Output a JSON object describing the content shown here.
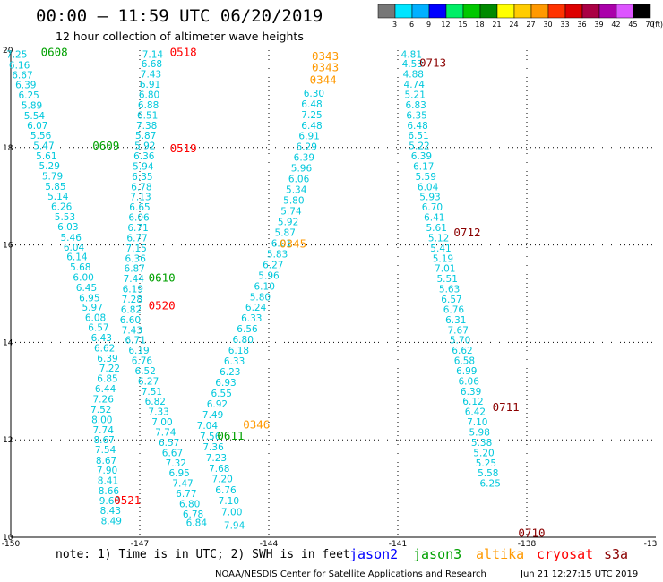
{
  "header": {
    "title": "00:00 – 11:59 UTC 06/20/2019",
    "subtitle": "12 hour collection of altimeter wave heights"
  },
  "footer": {
    "note": "note: 1) Time is in UTC; 2) SWH is in feet",
    "credit": "NOAA/NESDIS Center for Satellite Applications and Research",
    "timestamp": "Jun 21 12:27:15 UTC 2019"
  },
  "missions": [
    {
      "name": "jason2",
      "color": "#0000ff"
    },
    {
      "name": "jason3",
      "color": "#00a000"
    },
    {
      "name": "altika",
      "color": "#ff9900"
    },
    {
      "name": "cryosat",
      "color": "#ff0000"
    },
    {
      "name": "s3a",
      "color": "#8b0000"
    }
  ],
  "color_scale": {
    "unit": "(ft)",
    "labels": [
      "3",
      "6",
      "9",
      "12",
      "15",
      "18",
      "21",
      "24",
      "27",
      "30",
      "33",
      "36",
      "39",
      "42",
      "45",
      "70"
    ],
    "colors": [
      "#777777",
      "#00e5ff",
      "#00b0ff",
      "#0000ff",
      "#00ee66",
      "#00c800",
      "#008a00",
      "#ffff00",
      "#ffcc00",
      "#ff9900",
      "#ff3300",
      "#dd0000",
      "#aa0044",
      "#aa00aa",
      "#dd55ff",
      "#000000"
    ]
  },
  "chart_data": {
    "type": "scatter",
    "xlim": [
      -150,
      -135
    ],
    "ylim": [
      10,
      20
    ],
    "x_ticks": [
      "-150",
      "-147",
      "-144",
      "-141",
      "-138",
      "-13"
    ],
    "y_ticks": [
      "20",
      "18",
      "16",
      "14",
      "12",
      "10"
    ],
    "grid": true,
    "value_color": "#00c8dc",
    "cycle_labels": [
      {
        "text": "0608",
        "color": "#00a000",
        "lon": -149.3,
        "lat": 19.95
      },
      {
        "text": "0609",
        "color": "#00a000",
        "lon": -148.1,
        "lat": 18.03
      },
      {
        "text": "0610",
        "color": "#00a000",
        "lon": -146.8,
        "lat": 15.32
      },
      {
        "text": "0611",
        "color": "#00a000",
        "lon": -145.2,
        "lat": 12.08
      },
      {
        "text": "0518",
        "color": "#ff0000",
        "lon": -146.3,
        "lat": 19.95
      },
      {
        "text": "0519",
        "color": "#ff0000",
        "lon": -146.3,
        "lat": 17.98
      },
      {
        "text": "0520",
        "color": "#ff0000",
        "lon": -146.8,
        "lat": 14.75
      },
      {
        "text": "0521",
        "color": "#ff0000",
        "lon": -147.6,
        "lat": 10.75
      },
      {
        "text": "0343",
        "color": "#ff9900",
        "lon": -143.0,
        "lat": 19.87
      },
      {
        "text": "0343",
        "color": "#ff9900",
        "lon": -143.0,
        "lat": 19.64
      },
      {
        "text": "0344",
        "color": "#ff9900",
        "lon": -143.05,
        "lat": 19.38
      },
      {
        "text": "0345",
        "color": "#ff9900",
        "lon": -143.75,
        "lat": 16.02
      },
      {
        "text": "0346",
        "color": "#ff9900",
        "lon": -144.6,
        "lat": 12.31
      },
      {
        "text": "0713",
        "color": "#8b0000",
        "lon": -140.5,
        "lat": 19.73
      },
      {
        "text": "0712",
        "color": "#8b0000",
        "lon": -139.7,
        "lat": 16.25
      },
      {
        "text": "0711",
        "color": "#8b0000",
        "lon": -138.8,
        "lat": 12.67
      },
      {
        "text": "0710",
        "color": "#8b0000",
        "lon": -138.2,
        "lat": 10.08
      }
    ],
    "tracks": [
      {
        "name": "pass-a",
        "points": [
          [
            -149.86,
            19.92,
            "7.25"
          ],
          [
            -149.8,
            19.7,
            "6.16"
          ],
          [
            -149.73,
            19.49,
            "6.67"
          ],
          [
            -149.65,
            19.29,
            "6.39"
          ],
          [
            -149.58,
            19.08,
            "6.25"
          ],
          [
            -149.51,
            18.87,
            "5.89"
          ],
          [
            -149.45,
            18.66,
            "5.54"
          ],
          [
            -149.38,
            18.46,
            "6.07"
          ],
          [
            -149.3,
            18.25,
            "5.56"
          ],
          [
            -149.23,
            18.04,
            "5.47"
          ],
          [
            -149.17,
            17.83,
            "5.61"
          ],
          [
            -149.1,
            17.63,
            "5.29"
          ],
          [
            -149.03,
            17.42,
            "5.79"
          ],
          [
            -148.96,
            17.21,
            "5.85"
          ],
          [
            -148.9,
            17.0,
            "5.14"
          ],
          [
            -148.82,
            16.79,
            "6.26"
          ],
          [
            -148.74,
            16.58,
            "5.53"
          ],
          [
            -148.67,
            16.38,
            "6.03"
          ],
          [
            -148.6,
            16.16,
            "5.46"
          ],
          [
            -148.53,
            15.96,
            "6.04"
          ],
          [
            -148.46,
            15.76,
            "6.14"
          ],
          [
            -148.38,
            15.55,
            "5.68"
          ],
          [
            -148.31,
            15.34,
            "6.00"
          ],
          [
            -148.24,
            15.13,
            "6.45"
          ],
          [
            -148.17,
            14.92,
            "6.95"
          ],
          [
            -148.1,
            14.72,
            "5.97"
          ],
          [
            -148.03,
            14.51,
            "6.08"
          ],
          [
            -147.96,
            14.31,
            "6.57"
          ],
          [
            -147.89,
            14.1,
            "6.43"
          ],
          [
            -147.82,
            13.89,
            "6.62"
          ],
          [
            -147.75,
            13.68,
            "6.39"
          ],
          [
            -147.7,
            13.47,
            "7.22"
          ],
          [
            -147.75,
            13.26,
            "6.85"
          ],
          [
            -147.8,
            13.05,
            "6.44"
          ],
          [
            -147.85,
            12.84,
            "7.26"
          ],
          [
            -147.9,
            12.63,
            "7.52"
          ],
          [
            -147.88,
            12.42,
            "8.00"
          ],
          [
            -147.85,
            12.21,
            "7.74"
          ],
          [
            -147.83,
            12.0,
            "8.67"
          ],
          [
            -147.8,
            11.8,
            "7.54"
          ],
          [
            -147.78,
            11.58,
            "8.67"
          ],
          [
            -147.76,
            11.38,
            "7.90"
          ],
          [
            -147.74,
            11.17,
            "8.41"
          ],
          [
            -147.72,
            10.96,
            "8.66"
          ],
          [
            -147.7,
            10.75,
            "9.60"
          ],
          [
            -147.68,
            10.55,
            "8.43"
          ],
          [
            -147.66,
            10.34,
            "8.49"
          ]
        ]
      },
      {
        "name": "pass-b",
        "points": [
          [
            -146.7,
            19.92,
            "7.14"
          ],
          [
            -146.72,
            19.72,
            "6.68"
          ],
          [
            -146.74,
            19.51,
            "7.43"
          ],
          [
            -146.76,
            19.3,
            "6.91"
          ],
          [
            -146.78,
            19.09,
            "6.80"
          ],
          [
            -146.8,
            18.88,
            "6.88"
          ],
          [
            -146.82,
            18.67,
            "6.51"
          ],
          [
            -146.84,
            18.46,
            "7.38"
          ],
          [
            -146.86,
            18.25,
            "5.87"
          ],
          [
            -146.88,
            18.04,
            "5.92"
          ],
          [
            -146.9,
            17.83,
            "6.36"
          ],
          [
            -146.92,
            17.62,
            "5.94"
          ],
          [
            -146.94,
            17.41,
            "6.35"
          ],
          [
            -146.96,
            17.2,
            "6.78"
          ],
          [
            -146.98,
            16.99,
            "7.13"
          ],
          [
            -147.0,
            16.78,
            "6.65"
          ],
          [
            -147.02,
            16.57,
            "6.06"
          ],
          [
            -147.04,
            16.36,
            "6.71"
          ],
          [
            -147.06,
            16.15,
            "6.77"
          ],
          [
            -147.08,
            15.94,
            "7.15"
          ],
          [
            -147.1,
            15.73,
            "6.36"
          ],
          [
            -147.12,
            15.52,
            "6.87"
          ],
          [
            -147.14,
            15.31,
            "7.44"
          ],
          [
            -147.16,
            15.1,
            "6.19"
          ],
          [
            -147.18,
            14.89,
            "7.28"
          ],
          [
            -147.2,
            14.68,
            "6.82"
          ],
          [
            -147.22,
            14.47,
            "6.60"
          ],
          [
            -147.18,
            14.26,
            "7.43"
          ],
          [
            -147.1,
            14.05,
            "6.71"
          ],
          [
            -147.02,
            13.84,
            "6.19"
          ],
          [
            -146.95,
            13.63,
            "6.76"
          ],
          [
            -146.87,
            13.42,
            "6.52"
          ],
          [
            -146.8,
            13.21,
            "6.27"
          ],
          [
            -146.72,
            13.0,
            "7.51"
          ],
          [
            -146.64,
            12.79,
            "6.82"
          ],
          [
            -146.56,
            12.58,
            "7.33"
          ],
          [
            -146.48,
            12.37,
            "7.00"
          ],
          [
            -146.4,
            12.16,
            "7.74"
          ],
          [
            -146.32,
            11.95,
            "6.57"
          ],
          [
            -146.24,
            11.74,
            "6.67"
          ],
          [
            -146.16,
            11.53,
            "7.32"
          ],
          [
            -146.08,
            11.32,
            "6.95"
          ],
          [
            -146.0,
            11.11,
            "7.47"
          ],
          [
            -145.92,
            10.9,
            "6.77"
          ],
          [
            -145.84,
            10.69,
            "6.80"
          ],
          [
            -145.76,
            10.48,
            "6.78"
          ],
          [
            -145.68,
            10.3,
            "6.84"
          ]
        ]
      },
      {
        "name": "pass-c",
        "points": [
          [
            -144.8,
            10.25,
            "7.94"
          ],
          [
            -144.86,
            10.52,
            "7.00"
          ],
          [
            -144.93,
            10.75,
            "7.10"
          ],
          [
            -145.0,
            10.97,
            "6.76"
          ],
          [
            -145.08,
            11.2,
            "7.20"
          ],
          [
            -145.15,
            11.42,
            "7.68"
          ],
          [
            -145.22,
            11.64,
            "7.23"
          ],
          [
            -145.29,
            11.86,
            "7.36"
          ],
          [
            -145.36,
            12.08,
            "7.56"
          ],
          [
            -145.43,
            12.3,
            "7.04"
          ],
          [
            -145.3,
            12.52,
            "7.49"
          ],
          [
            -145.2,
            12.74,
            "6.92"
          ],
          [
            -145.1,
            12.96,
            "6.55"
          ],
          [
            -145.0,
            13.18,
            "6.93"
          ],
          [
            -144.9,
            13.4,
            "6.23"
          ],
          [
            -144.8,
            13.62,
            "6.33"
          ],
          [
            -144.7,
            13.84,
            "6.18"
          ],
          [
            -144.6,
            14.06,
            "6.80"
          ],
          [
            -144.5,
            14.28,
            "6.56"
          ],
          [
            -144.4,
            14.5,
            "6.33"
          ],
          [
            -144.3,
            14.72,
            "6.24"
          ],
          [
            -144.2,
            14.94,
            "5.80"
          ],
          [
            -144.1,
            15.16,
            "6.10"
          ],
          [
            -144.0,
            15.38,
            "5.96"
          ],
          [
            -143.9,
            15.6,
            "6.27"
          ],
          [
            -143.8,
            15.82,
            "5.83"
          ],
          [
            -143.7,
            16.04,
            "6.01"
          ],
          [
            -143.62,
            16.26,
            "5.87"
          ],
          [
            -143.55,
            16.48,
            "5.92"
          ],
          [
            -143.48,
            16.7,
            "5.74"
          ],
          [
            -143.42,
            16.92,
            "5.80"
          ],
          [
            -143.36,
            17.14,
            "5.34"
          ],
          [
            -143.3,
            17.36,
            "6.06"
          ],
          [
            -143.24,
            17.58,
            "5.96"
          ],
          [
            -143.18,
            17.8,
            "6.39"
          ],
          [
            -143.12,
            18.02,
            "6.29"
          ],
          [
            -143.06,
            18.24,
            "6.91"
          ],
          [
            -143.0,
            18.46,
            "6.48"
          ],
          [
            -143.0,
            18.68,
            "7.25"
          ],
          [
            -143.0,
            18.9,
            "6.48"
          ],
          [
            -142.95,
            19.12,
            "6.30"
          ]
        ]
      },
      {
        "name": "pass-d",
        "points": [
          [
            -140.68,
            19.92,
            "4.81"
          ],
          [
            -140.66,
            19.72,
            "4.53"
          ],
          [
            -140.64,
            19.51,
            "4.88"
          ],
          [
            -140.62,
            19.3,
            "4.74"
          ],
          [
            -140.6,
            19.09,
            "5.21"
          ],
          [
            -140.58,
            18.88,
            "6.83"
          ],
          [
            -140.56,
            18.67,
            "6.35"
          ],
          [
            -140.54,
            18.46,
            "6.48"
          ],
          [
            -140.52,
            18.25,
            "6.51"
          ],
          [
            -140.5,
            18.04,
            "5.22"
          ],
          [
            -140.45,
            17.83,
            "6.39"
          ],
          [
            -140.4,
            17.62,
            "6.17"
          ],
          [
            -140.35,
            17.41,
            "5.59"
          ],
          [
            -140.3,
            17.2,
            "6.04"
          ],
          [
            -140.25,
            16.99,
            "5.93"
          ],
          [
            -140.2,
            16.78,
            "6.70"
          ],
          [
            -140.15,
            16.57,
            "6.41"
          ],
          [
            -140.1,
            16.36,
            "5.61"
          ],
          [
            -140.05,
            16.15,
            "5.12"
          ],
          [
            -140.0,
            15.94,
            "5.41"
          ],
          [
            -139.95,
            15.73,
            "5.19"
          ],
          [
            -139.9,
            15.52,
            "7.01"
          ],
          [
            -139.85,
            15.31,
            "5.51"
          ],
          [
            -139.8,
            15.1,
            "5.63"
          ],
          [
            -139.75,
            14.89,
            "6.57"
          ],
          [
            -139.7,
            14.68,
            "6.76"
          ],
          [
            -139.65,
            14.47,
            "6.31"
          ],
          [
            -139.6,
            14.26,
            "7.67"
          ],
          [
            -139.55,
            14.05,
            "5.70"
          ],
          [
            -139.5,
            13.84,
            "6.62"
          ],
          [
            -139.45,
            13.63,
            "6.58"
          ],
          [
            -139.4,
            13.42,
            "6.99"
          ],
          [
            -139.35,
            13.21,
            "6.06"
          ],
          [
            -139.3,
            13.0,
            "6.39"
          ],
          [
            -139.25,
            12.79,
            "6.12"
          ],
          [
            -139.2,
            12.58,
            "6.42"
          ],
          [
            -139.15,
            12.37,
            "7.10"
          ],
          [
            -139.1,
            12.16,
            "5.98"
          ],
          [
            -139.05,
            11.95,
            "5.38"
          ],
          [
            -139.0,
            11.74,
            "5.20"
          ],
          [
            -138.95,
            11.53,
            "5.25"
          ],
          [
            -138.9,
            11.32,
            "5.58"
          ],
          [
            -138.85,
            11.11,
            "6.25"
          ]
        ]
      }
    ]
  }
}
